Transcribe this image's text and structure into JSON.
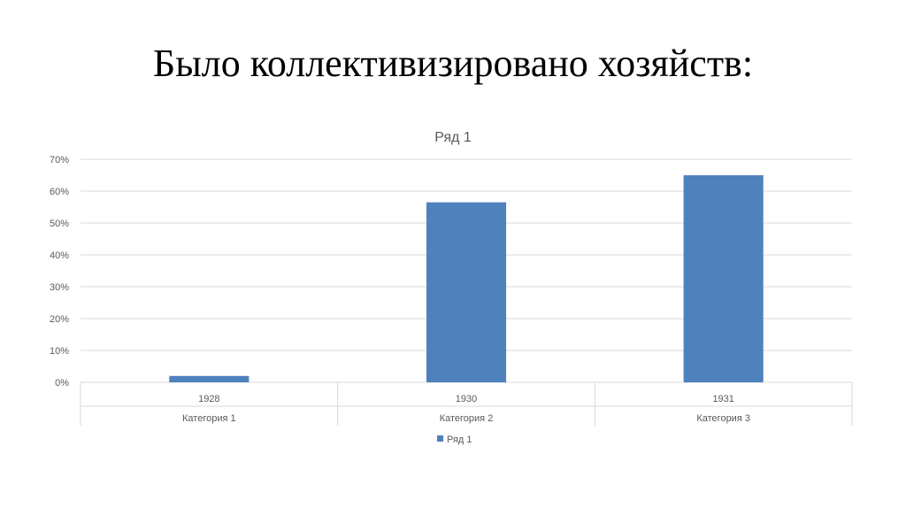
{
  "slide": {
    "title": "Было коллективизировано хозяйств:"
  },
  "chart_data": {
    "type": "bar",
    "title": "Ряд 1",
    "categories": [
      {
        "year": "1928",
        "group": "Категория 1"
      },
      {
        "year": "1930",
        "group": "Категория 2"
      },
      {
        "year": "1931",
        "group": "Категория 3"
      }
    ],
    "series": [
      {
        "name": "Ряд 1",
        "values": [
          0.02,
          0.565,
          0.65
        ],
        "color": "#4F81BD"
      }
    ],
    "y_ticks": [
      "0%",
      "10%",
      "20%",
      "30%",
      "40%",
      "50%",
      "60%",
      "70%"
    ],
    "ylim": [
      0,
      0.7
    ],
    "grid": true,
    "legend_position": "bottom"
  }
}
